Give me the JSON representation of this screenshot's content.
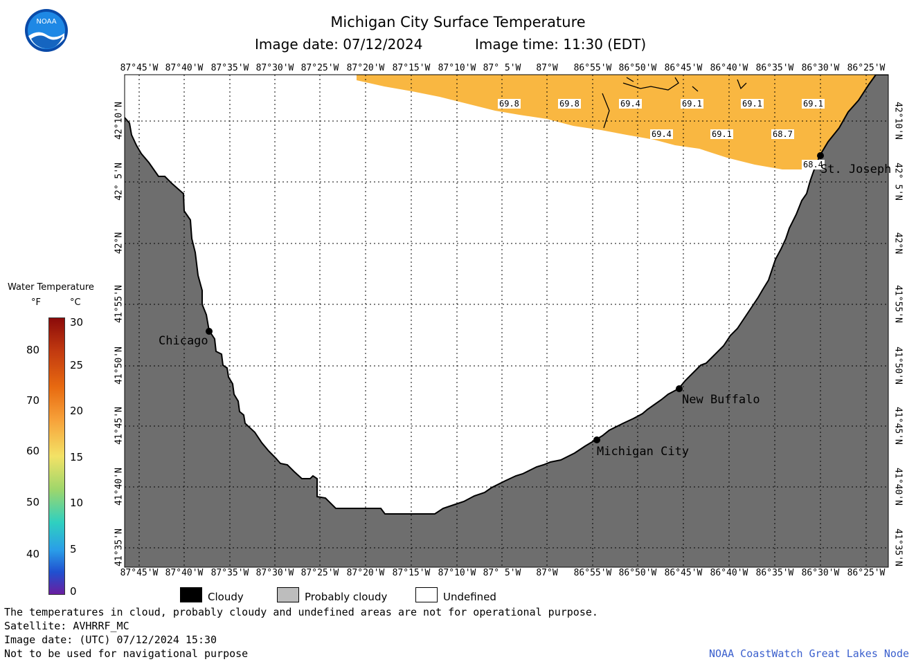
{
  "title": "Michigan City Surface Temperature",
  "image_date": "Image date: 07/12/2024",
  "image_time": "Image time: 11:30 (EDT)",
  "logo_text": "NOAA",
  "colorbar": {
    "title": "Water Temperature",
    "unit_f": "°F",
    "unit_c": "°C",
    "f_ticks": [
      "80",
      "70",
      "60",
      "50",
      "40"
    ],
    "c_ticks": [
      "30",
      "25",
      "20",
      "15",
      "10",
      "5",
      "0"
    ]
  },
  "lon_labels": [
    "87°45'W",
    "87°40'W",
    "87°35'W",
    "87°30'W",
    "87°25'W",
    "87°20'W",
    "87°15'W",
    "87°10'W",
    "87° 5'W",
    "87°W",
    "86°55'W",
    "86°50'W",
    "86°45'W",
    "86°40'W",
    "86°35'W",
    "86°30'W",
    "86°25'W"
  ],
  "lat_labels": [
    "42°10'N",
    "42° 5'N",
    "42°N",
    "41°55'N",
    "41°50'N",
    "41°45'N",
    "41°40'N",
    "41°35'N"
  ],
  "cities": [
    {
      "name": "Chicago"
    },
    {
      "name": "St. Joseph"
    },
    {
      "name": "New Buffalo"
    },
    {
      "name": "Michigan City"
    }
  ],
  "temp_labels": [
    "69.8",
    "69.8",
    "69.4",
    "69.1",
    "69.1",
    "69.1",
    "69.4",
    "69.1",
    "68.7",
    "68.4"
  ],
  "colors": {
    "land": "#6e6e6e",
    "water_warm": "#f9b741",
    "water_warm_light": "#fbc24e",
    "grid": "#000000",
    "credit": "#3a5fcd"
  },
  "legend": [
    "Cloudy",
    "Probably cloudy",
    "Undefined"
  ],
  "footer": [
    "The temperatures in cloud, probably cloudy and undefined areas are not for operational purpose.",
    "Satellite: AVHRRF_MC",
    "Image date: (UTC) 07/12/2024  15:30",
    "Not to be used for navigational purpose"
  ],
  "credit": "NOAA CoastWatch Great Lakes Node"
}
